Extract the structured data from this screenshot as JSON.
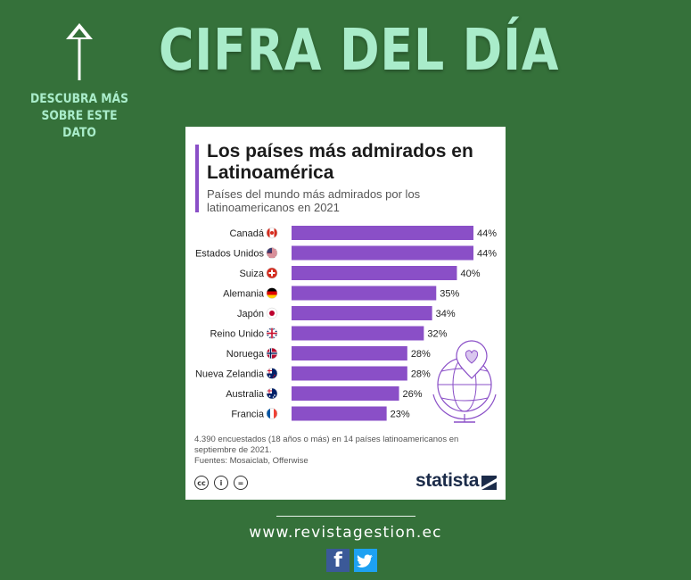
{
  "header": {
    "headline": "CIFRA DEL DÍA",
    "side_note": "DESCUBRA MÁS SOBRE ESTE DATO"
  },
  "chart_data": {
    "type": "bar",
    "orientation": "horizontal",
    "title": "Los países más admirados en Latinoamérica",
    "subtitle": "Países del mundo más admirados por los latinoamericanos en 2021",
    "categories": [
      "Canadá",
      "Estados Unidos",
      "Suiza",
      "Alemania",
      "Japón",
      "Reino Unido",
      "Noruega",
      "Nueva Zelandia",
      "Australia",
      "Francia"
    ],
    "values": [
      44,
      44,
      40,
      35,
      34,
      32,
      28,
      28,
      26,
      23
    ],
    "value_labels": [
      "44%",
      "44%",
      "40%",
      "35%",
      "34%",
      "32%",
      "28%",
      "28%",
      "26%",
      "23%"
    ],
    "flags": [
      "canada",
      "usa",
      "switzerland",
      "germany",
      "japan",
      "uk",
      "norway",
      "new-zealand",
      "australia",
      "france"
    ],
    "unit": "%",
    "bar_color": "#8a4fc7",
    "grid": false,
    "legend": "none"
  },
  "footnote": {
    "survey": "4.390 encuestados (18 años o más) en 14 países latinoamericanos en septiembre de 2021.",
    "sources": "Fuentes: Mosaiclab, Offerwise"
  },
  "brand": "statista",
  "license_icons": [
    "cc",
    "by",
    "nd"
  ],
  "license_glyphs": [
    "cc",
    "i",
    "="
  ],
  "website": "www.revistagestion.ec",
  "social": [
    "facebook-icon",
    "twitter-icon"
  ],
  "colors": {
    "background": "#35713a",
    "accent": "#a9ecca",
    "bar": "#8a4fc7",
    "brand": "#1b2b49"
  }
}
